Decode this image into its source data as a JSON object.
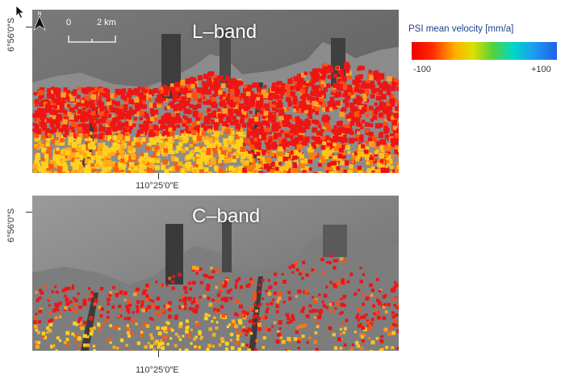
{
  "panels": [
    {
      "title": "L–band",
      "latitude_label": "6°56′0″S",
      "longitude_label": "110°25′0″E"
    },
    {
      "title": "C–band",
      "latitude_label": "6°56′0″S",
      "longitude_label": "110°25′0″E"
    }
  ],
  "legend": {
    "title": "PSI mean velocity [mm/a]",
    "min": "-100",
    "max": "+100",
    "colors": [
      "#ee0000",
      "#ffb000",
      "#dde000",
      "#52d23c",
      "#00d7c8",
      "#1f60e8"
    ]
  },
  "scale_bar": {
    "start": "0",
    "end": "2 km"
  },
  "icons": {
    "north_arrow": "north-arrow-icon",
    "cursor": "mouse-pointer-icon"
  }
}
